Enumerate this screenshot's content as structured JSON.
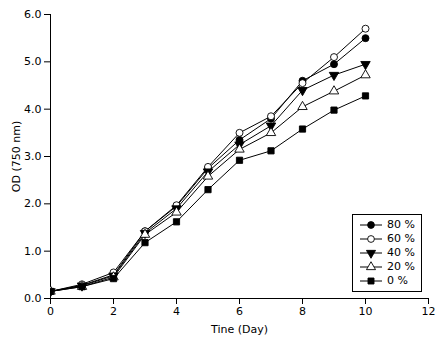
{
  "chart_data": {
    "type": "line",
    "x": [
      0,
      1,
      2,
      3,
      4,
      5,
      6,
      7,
      8,
      9,
      10
    ],
    "series": [
      {
        "name": "80 %",
        "color": "black",
        "marker": "circle",
        "values": [
          0.15,
          0.28,
          0.5,
          1.42,
          1.95,
          2.75,
          3.35,
          3.8,
          4.6,
          4.95,
          5.5
        ]
      },
      {
        "name": "60 %",
        "color": "black",
        "marker": "circle-open",
        "values": [
          0.15,
          0.3,
          0.55,
          1.42,
          1.97,
          2.78,
          3.5,
          3.85,
          4.55,
          5.1,
          5.7
        ]
      },
      {
        "name": "40 %",
        "color": "black",
        "marker": "triangle-down",
        "values": [
          0.15,
          0.27,
          0.48,
          1.38,
          1.9,
          2.68,
          3.25,
          3.65,
          4.4,
          4.72,
          4.95
        ]
      },
      {
        "name": "20 %",
        "color": "black",
        "marker": "triangle-up-open",
        "values": [
          0.15,
          0.25,
          0.45,
          1.35,
          1.82,
          2.58,
          3.15,
          3.5,
          4.05,
          4.38,
          4.72
        ]
      },
      {
        "name": "0 %",
        "color": "black",
        "marker": "square",
        "values": [
          0.15,
          0.25,
          0.42,
          1.18,
          1.62,
          2.3,
          2.92,
          3.12,
          3.58,
          3.98,
          4.28
        ]
      }
    ],
    "xlabel": "Tine (Day)",
    "ylabel": "OD (750 nm)",
    "xlim": [
      0,
      12
    ],
    "ylim": [
      0,
      6
    ],
    "xticks": [
      0,
      2,
      4,
      6,
      8,
      10,
      12
    ],
    "yticks": [
      0,
      1,
      2,
      3,
      4,
      5,
      6
    ],
    "legend": "lower right"
  }
}
